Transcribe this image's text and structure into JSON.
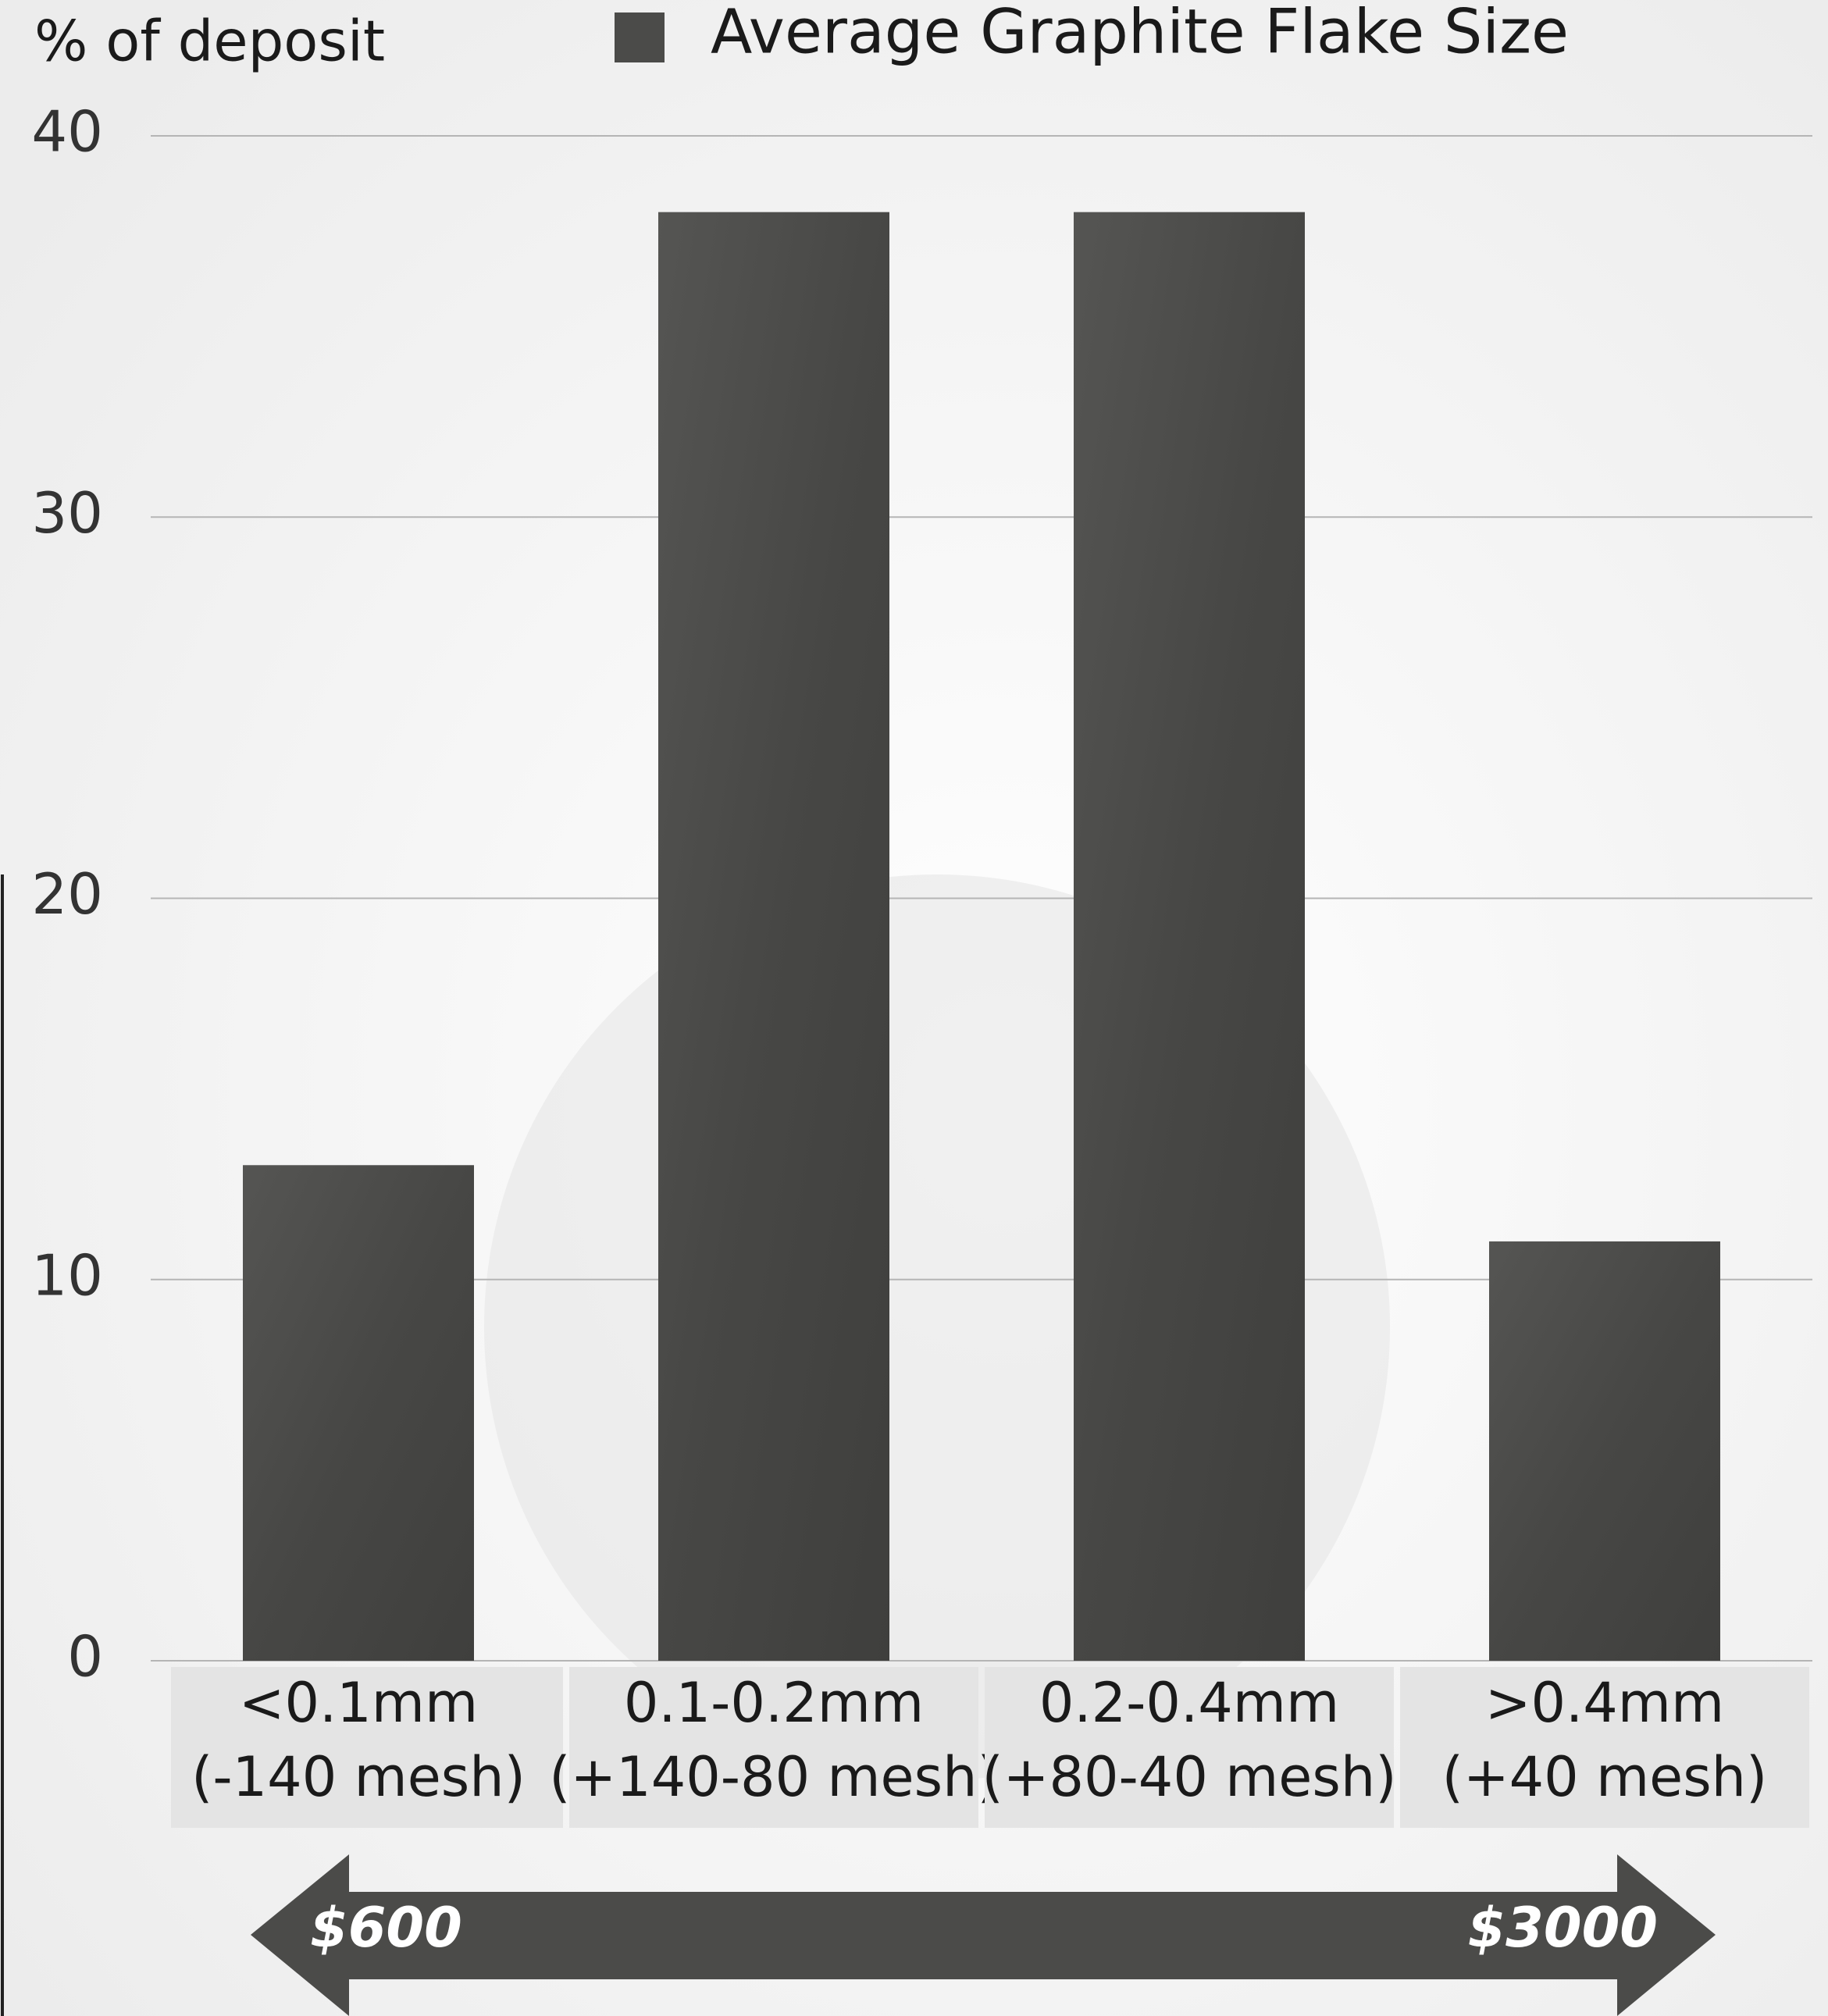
{
  "chart_data": {
    "type": "bar",
    "y_axis_label": "% of deposit",
    "legend": "Average Graphite Flake Size",
    "categories": [
      [
        "<0.1mm",
        "(-140 mesh)"
      ],
      [
        "0.1-0.2mm",
        "(+140-80 mesh)"
      ],
      [
        "0.2-0.4mm",
        "(+80-40 mesh)"
      ],
      [
        ">0.4mm",
        "(+40 mesh)"
      ]
    ],
    "values": [
      13,
      38,
      38,
      11
    ],
    "color": "#4b4b49",
    "ylim": [
      0,
      40
    ],
    "yticks": [
      0,
      10,
      20,
      30,
      40
    ],
    "grid": true,
    "arrow_labels": [
      "$600",
      "$3000"
    ]
  }
}
